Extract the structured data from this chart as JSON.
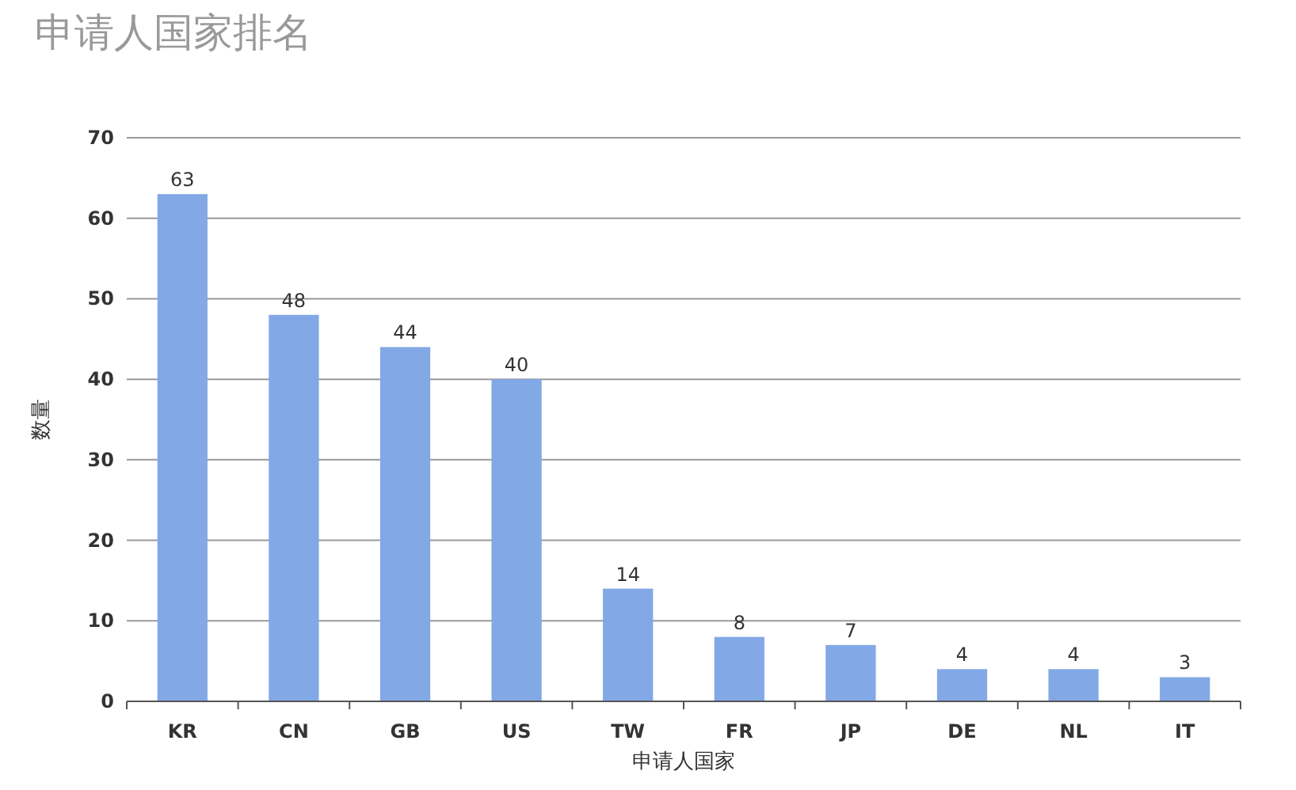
{
  "chart_data": {
    "type": "bar",
    "title": "申请人国家排名",
    "xlabel": "申请人国家",
    "ylabel": "数量",
    "categories": [
      "KR",
      "CN",
      "GB",
      "US",
      "TW",
      "FR",
      "JP",
      "DE",
      "NL",
      "IT"
    ],
    "values": [
      63,
      48,
      44,
      40,
      14,
      8,
      7,
      4,
      4,
      3
    ],
    "color": "#82a8e6",
    "ylim": [
      0,
      70
    ],
    "yticks": [
      0,
      10,
      20,
      30,
      40,
      50,
      60,
      70
    ],
    "grid": "y",
    "data_labels": true
  }
}
